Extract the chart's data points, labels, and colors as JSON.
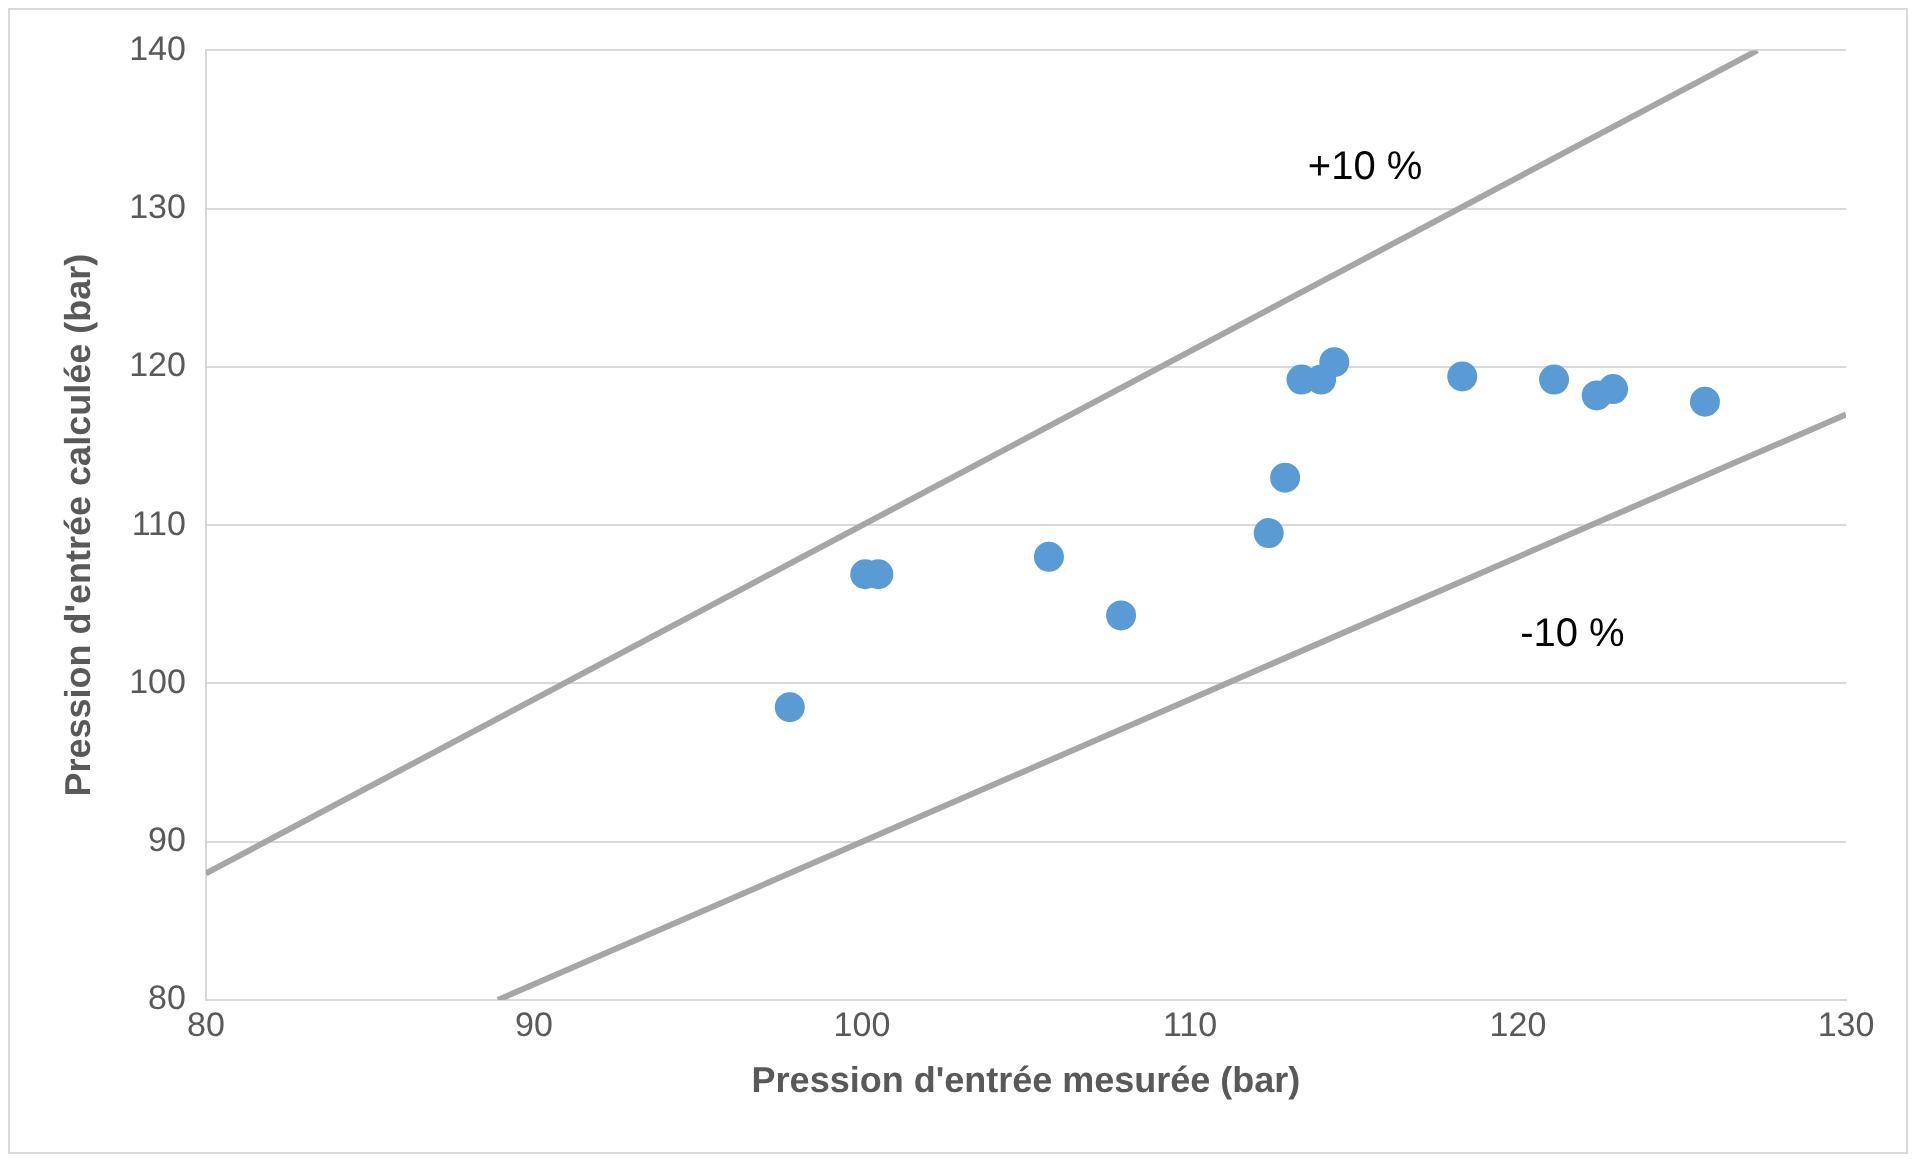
{
  "chart_data": {
    "type": "scatter",
    "xlabel": "Pression d'entrée mesurée (bar)",
    "ylabel": "Pression d'entrée calculée (bar)",
    "xlim": [
      80,
      130
    ],
    "xticks": [
      80,
      90,
      100,
      110,
      120,
      130
    ],
    "ylim": [
      80,
      140
    ],
    "yticks": [
      80,
      90,
      100,
      110,
      120,
      130,
      140
    ],
    "grid": "y",
    "legend": false,
    "marker": "circle",
    "series": [
      {
        "color": "#5b9bd5",
        "x": [
          97.8,
          100.1,
          100.5,
          105.7,
          107.9,
          112.4,
          112.9,
          113.4,
          114.0,
          114.4,
          118.3,
          121.1,
          122.4,
          122.9,
          125.7
        ],
        "values": [
          98.5,
          106.9,
          106.9,
          108.0,
          104.3,
          109.5,
          113.0,
          119.2,
          119.2,
          120.3,
          119.4,
          119.2,
          118.2,
          118.6,
          117.8
        ]
      },
      {
        "type": "line",
        "name": "+10 %",
        "marker": "none",
        "color": "#a6a6a6",
        "x": [
          80,
          127.3
        ],
        "values": [
          88,
          140
        ]
      },
      {
        "type": "line",
        "name": "-10 %",
        "marker": "none",
        "color": "#a6a6a6",
        "x": [
          88.9,
          130
        ],
        "values": [
          80,
          117
        ]
      }
    ]
  }
}
